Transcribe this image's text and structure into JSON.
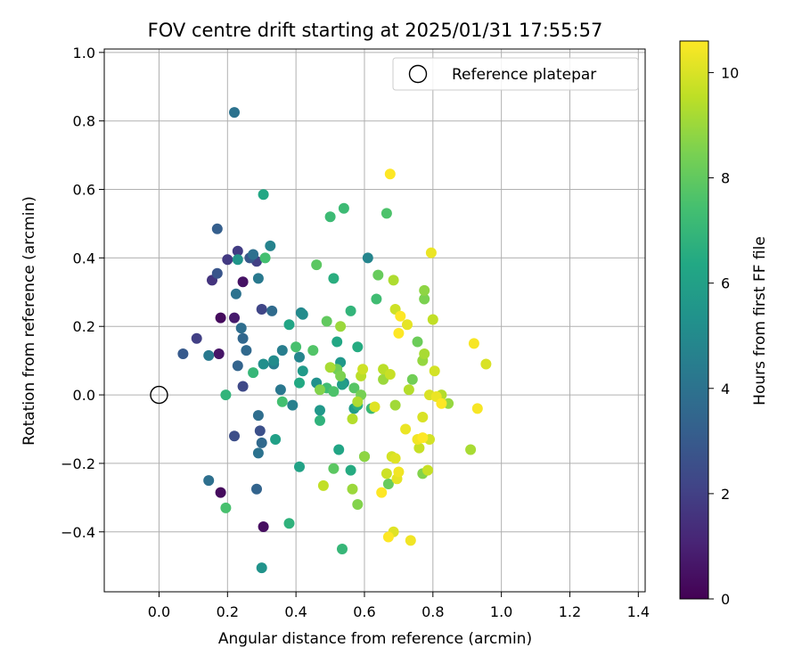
{
  "chart_data": {
    "type": "scatter",
    "title": "FOV centre drift starting at 2025/01/31 17:55:57",
    "xlabel": "Angular distance from reference (arcmin)",
    "ylabel": "Rotation from reference (arcmin)",
    "colorbar_label": "Hours from first FF file",
    "xlim": [
      -0.16,
      1.42
    ],
    "ylim": [
      -0.575,
      1.01
    ],
    "clim": [
      0,
      10.6
    ],
    "colormap": "viridis",
    "xticks": [
      "0.0",
      "0.2",
      "0.4",
      "0.6",
      "0.8",
      "1.0",
      "1.2",
      "1.4"
    ],
    "yticks": [
      "−0.4",
      "−0.2",
      "0.0",
      "0.2",
      "0.4",
      "0.6",
      "0.8",
      "1.0"
    ],
    "cticks": [
      "0",
      "2",
      "4",
      "6",
      "8",
      "10"
    ],
    "grid": true,
    "legend": {
      "entries": [
        "Reference platepar"
      ],
      "placement": "upper right"
    },
    "reference_point": {
      "x": 0.0,
      "y": 0.0,
      "marker": "open-circle",
      "color": "#000000"
    },
    "points": [
      [
        0.18,
        0.225,
        0.3
      ],
      [
        0.18,
        -0.285,
        0.3
      ],
      [
        0.305,
        -0.385,
        0.4
      ],
      [
        0.245,
        0.33,
        0.5
      ],
      [
        0.175,
        0.12,
        0.6
      ],
      [
        0.22,
        0.225,
        0.8
      ],
      [
        0.155,
        0.335,
        1.6
      ],
      [
        0.2,
        0.395,
        1.8
      ],
      [
        0.23,
        0.42,
        1.9
      ],
      [
        0.11,
        0.165,
        2.0
      ],
      [
        0.285,
        0.39,
        2.0
      ],
      [
        0.3,
        0.25,
        2.2
      ],
      [
        0.245,
        0.025,
        2.3
      ],
      [
        0.22,
        -0.12,
        2.5
      ],
      [
        0.295,
        -0.105,
        2.6
      ],
      [
        0.17,
        0.355,
        2.8
      ],
      [
        0.265,
        0.4,
        2.9
      ],
      [
        0.07,
        0.12,
        3.0
      ],
      [
        0.17,
        0.485,
        3.2
      ],
      [
        0.23,
        0.085,
        3.4
      ],
      [
        0.285,
        -0.275,
        3.4
      ],
      [
        0.245,
        0.165,
        3.5
      ],
      [
        0.3,
        -0.14,
        3.6
      ],
      [
        0.255,
        0.13,
        3.6
      ],
      [
        0.33,
        0.245,
        3.7
      ],
      [
        0.29,
        -0.06,
        3.8
      ],
      [
        0.24,
        0.195,
        3.8
      ],
      [
        0.145,
        -0.25,
        3.9
      ],
      [
        0.275,
        0.41,
        3.9
      ],
      [
        0.29,
        -0.17,
        4.0
      ],
      [
        0.22,
        0.825,
        4.0
      ],
      [
        0.225,
        0.295,
        4.0
      ],
      [
        0.355,
        0.015,
        4.2
      ],
      [
        0.29,
        0.34,
        4.3
      ],
      [
        0.145,
        0.115,
        4.3
      ],
      [
        0.335,
        0.09,
        4.5
      ],
      [
        0.36,
        0.13,
        4.5
      ],
      [
        0.39,
        -0.03,
        4.6
      ],
      [
        0.325,
        0.435,
        4.7
      ],
      [
        0.61,
        0.4,
        4.8
      ],
      [
        0.41,
        0.11,
        4.8
      ],
      [
        0.415,
        0.24,
        4.9
      ],
      [
        0.335,
        0.1,
        5.1
      ],
      [
        0.42,
        0.235,
        5.1
      ],
      [
        0.54,
        0.035,
        5.2
      ],
      [
        0.305,
        0.09,
        5.2
      ],
      [
        0.46,
        0.035,
        5.3
      ],
      [
        0.3,
        -0.505,
        5.4
      ],
      [
        0.23,
        0.395,
        5.5
      ],
      [
        0.53,
        0.095,
        5.6
      ],
      [
        0.47,
        -0.045,
        5.6
      ],
      [
        0.42,
        0.07,
        5.7
      ],
      [
        0.57,
        -0.04,
        5.8
      ],
      [
        0.535,
        0.03,
        5.9
      ],
      [
        0.34,
        -0.13,
        6.0
      ],
      [
        0.41,
        -0.21,
        6.1
      ],
      [
        0.525,
        -0.16,
        6.2
      ],
      [
        0.38,
        0.205,
        6.2
      ],
      [
        0.305,
        0.585,
        6.3
      ],
      [
        0.52,
        0.155,
        6.3
      ],
      [
        0.41,
        0.035,
        6.4
      ],
      [
        0.56,
        -0.22,
        6.5
      ],
      [
        0.58,
        0.14,
        6.5
      ],
      [
        0.58,
        -0.03,
        6.6
      ],
      [
        0.51,
        0.34,
        6.6
      ],
      [
        0.6,
        -0.18,
        6.7
      ],
      [
        0.47,
        -0.075,
        6.8
      ],
      [
        0.38,
        -0.375,
        6.8
      ],
      [
        0.56,
        0.245,
        6.9
      ],
      [
        0.195,
        0.0,
        6.9
      ],
      [
        0.535,
        -0.45,
        7.0
      ],
      [
        0.275,
        0.065,
        7.0
      ],
      [
        0.62,
        -0.04,
        7.1
      ],
      [
        0.5,
        0.52,
        7.2
      ],
      [
        0.54,
        0.545,
        7.2
      ],
      [
        0.635,
        0.28,
        7.3
      ],
      [
        0.49,
        0.02,
        7.3
      ],
      [
        0.36,
        -0.02,
        7.4
      ],
      [
        0.31,
        0.4,
        7.4
      ],
      [
        0.4,
        0.14,
        7.5
      ],
      [
        0.195,
        -0.33,
        7.5
      ],
      [
        0.51,
        0.01,
        7.6
      ],
      [
        0.665,
        0.53,
        7.6
      ],
      [
        0.45,
        0.13,
        7.7
      ],
      [
        0.57,
        0.02,
        7.8
      ],
      [
        0.51,
        -0.215,
        7.9
      ],
      [
        0.46,
        0.38,
        7.9
      ],
      [
        0.49,
        0.215,
        8.0
      ],
      [
        0.67,
        -0.26,
        8.1
      ],
      [
        0.64,
        0.35,
        8.1
      ],
      [
        0.755,
        0.155,
        8.2
      ],
      [
        0.52,
        0.075,
        8.3
      ],
      [
        0.74,
        0.045,
        8.3
      ],
      [
        0.59,
        0.0,
        8.4
      ],
      [
        0.775,
        0.28,
        8.5
      ],
      [
        0.53,
        0.055,
        8.5
      ],
      [
        0.47,
        0.015,
        8.6
      ],
      [
        0.58,
        -0.32,
        8.6
      ],
      [
        0.77,
        -0.23,
        8.6
      ],
      [
        0.6,
        -0.18,
        8.8
      ],
      [
        0.775,
        0.305,
        8.8
      ],
      [
        0.77,
        0.1,
        8.9
      ],
      [
        0.845,
        -0.025,
        8.9
      ],
      [
        0.565,
        -0.275,
        9.0
      ],
      [
        0.655,
        0.045,
        9.0
      ],
      [
        0.53,
        0.2,
        9.0
      ],
      [
        0.69,
        -0.03,
        9.1
      ],
      [
        0.91,
        -0.16,
        9.2
      ],
      [
        0.775,
        0.12,
        9.2
      ],
      [
        0.5,
        0.08,
        9.2
      ],
      [
        0.58,
        -0.02,
        9.3
      ],
      [
        0.685,
        0.335,
        9.3
      ],
      [
        0.73,
        0.015,
        9.4
      ],
      [
        0.565,
        -0.07,
        9.4
      ],
      [
        0.825,
        0.0,
        9.4
      ],
      [
        0.59,
        0.055,
        9.5
      ],
      [
        0.655,
        0.075,
        9.5
      ],
      [
        0.8,
        0.22,
        9.6
      ],
      [
        0.48,
        -0.265,
        9.6
      ],
      [
        0.76,
        -0.155,
        9.7
      ],
      [
        0.785,
        -0.22,
        9.7
      ],
      [
        0.675,
        0.06,
        9.7
      ],
      [
        0.595,
        0.075,
        9.8
      ],
      [
        0.69,
        0.25,
        9.8
      ],
      [
        0.665,
        -0.23,
        9.8
      ],
      [
        0.805,
        0.07,
        9.9
      ],
      [
        0.79,
        -0.13,
        9.9
      ],
      [
        0.68,
        -0.18,
        9.9
      ],
      [
        0.77,
        -0.065,
        10.0
      ],
      [
        0.79,
        0.0,
        10.0
      ],
      [
        0.955,
        0.09,
        10.0
      ],
      [
        0.685,
        -0.4,
        10.1
      ],
      [
        0.69,
        -0.185,
        10.1
      ],
      [
        0.63,
        -0.035,
        10.1
      ],
      [
        0.695,
        -0.245,
        10.2
      ],
      [
        0.725,
        0.205,
        10.2
      ],
      [
        0.72,
        -0.1,
        10.3
      ],
      [
        0.81,
        -0.005,
        10.3
      ],
      [
        0.795,
        0.415,
        10.3
      ],
      [
        0.7,
        -0.225,
        10.4
      ],
      [
        0.735,
        -0.425,
        10.4
      ],
      [
        0.755,
        -0.13,
        10.4
      ],
      [
        0.93,
        -0.04,
        10.5
      ],
      [
        0.92,
        0.15,
        10.5
      ],
      [
        0.65,
        -0.285,
        10.6
      ],
      [
        0.67,
        -0.415,
        10.6
      ],
      [
        0.77,
        -0.125,
        10.6
      ],
      [
        0.825,
        -0.025,
        10.6
      ],
      [
        0.705,
        0.23,
        10.6
      ],
      [
        0.7,
        0.18,
        10.6
      ],
      [
        0.675,
        0.645,
        10.6
      ]
    ]
  }
}
